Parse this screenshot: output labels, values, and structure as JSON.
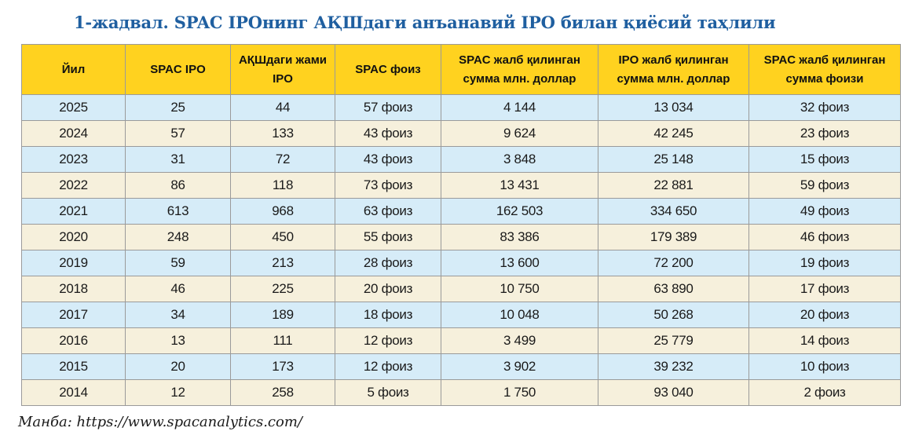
{
  "title": "1-жадвал. SPAC IPOнинг АҚШдаги анъанавий IPO билан қиёсий таҳлили",
  "table": {
    "headers": [
      "Йил",
      "SPAC IPO",
      "АҚШдаги жами IPO",
      "SPAC фоиз",
      "SPAC жалб қилинган сумма млн. доллар",
      "IPO жалб қилинган сумма млн. доллар",
      "SPAC жалб қилинган сумма фоизи"
    ],
    "rows": [
      [
        "2025",
        "25",
        "44",
        "57 фоиз",
        "4 144",
        "13 034",
        "32 фоиз"
      ],
      [
        "2024",
        "57",
        "133",
        "43 фоиз",
        "9 624",
        "42 245",
        "23 фоиз"
      ],
      [
        "2023",
        "31",
        "72",
        "43 фоиз",
        "3 848",
        "25 148",
        "15 фоиз"
      ],
      [
        "2022",
        "86",
        "118",
        "73 фоиз",
        "13 431",
        "22 881",
        "59 фоиз"
      ],
      [
        "2021",
        "613",
        "968",
        "63 фоиз",
        "162 503",
        "334 650",
        "49 фоиз"
      ],
      [
        "2020",
        "248",
        "450",
        "55 фоиз",
        "83 386",
        "179 389",
        "46 фоиз"
      ],
      [
        "2019",
        "59",
        "213",
        "28 фоиз",
        "13 600",
        "72 200",
        "19 фоиз"
      ],
      [
        "2018",
        "46",
        "225",
        "20 фоиз",
        "10 750",
        "63 890",
        "17 фоиз"
      ],
      [
        "2017",
        "34",
        "189",
        "18 фоиз",
        "10 048",
        "50 268",
        "20 фоиз"
      ],
      [
        "2016",
        "13",
        "111",
        "12 фоиз",
        "3 499",
        "25 779",
        "14 фоиз"
      ],
      [
        "2015",
        "20",
        "173",
        "12 фоиз",
        "3 902",
        "39 232",
        "10 фоиз"
      ],
      [
        "2014",
        "12",
        "258",
        "5 фоиз",
        "1 750",
        "93 040",
        "2 фоиз"
      ]
    ]
  },
  "source": "Манба: https://www.spacanalytics.com/",
  "colors": {
    "title": "#1f5fa0",
    "header_bg": "#ffd21f",
    "row_blue": "#d6ecf8",
    "row_beige": "#f6f0dc"
  }
}
